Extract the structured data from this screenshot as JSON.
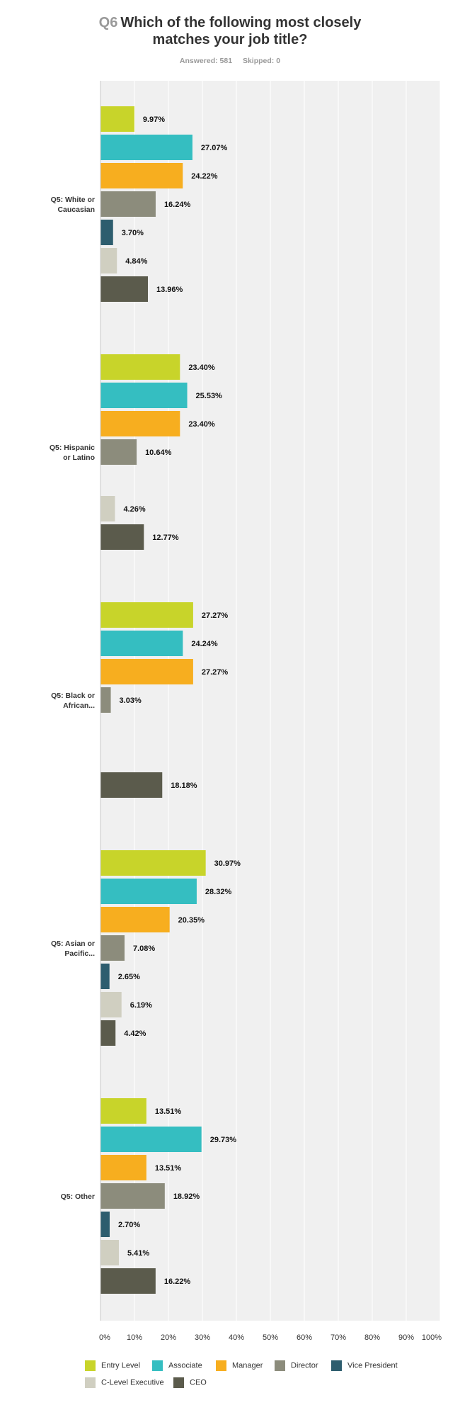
{
  "header": {
    "question_number": "Q6",
    "title_line1": "Which of the following most closely",
    "title_line2": "matches your job title?",
    "answered": "Answered: 581",
    "skipped": "Skipped: 0"
  },
  "chart_data": {
    "type": "bar",
    "orientation": "horizontal",
    "categories": [
      [
        "Q5: White or",
        "Caucasian"
      ],
      [
        "Q5: Hispanic",
        "or Latino"
      ],
      [
        "Q5: Black or",
        "African..."
      ],
      [
        "Q5: Asian or",
        "Pacific..."
      ],
      [
        "Q5: Other"
      ]
    ],
    "series": [
      {
        "name": "Entry Level",
        "color": "#c8d42a",
        "values": [
          9.97,
          23.4,
          27.27,
          30.97,
          13.51
        ]
      },
      {
        "name": "Associate",
        "color": "#35bec1",
        "values": [
          27.07,
          25.53,
          24.24,
          28.32,
          29.73
        ]
      },
      {
        "name": "Manager",
        "color": "#f7ae1f",
        "values": [
          24.22,
          23.4,
          27.27,
          20.35,
          13.51
        ]
      },
      {
        "name": "Director",
        "color": "#8c8c7c",
        "values": [
          16.24,
          10.64,
          3.03,
          7.08,
          18.92
        ]
      },
      {
        "name": "Vice President",
        "color": "#2d5d6e",
        "values": [
          3.7,
          null,
          null,
          2.65,
          2.7
        ]
      },
      {
        "name": "C-Level Executive",
        "color": "#d0cfc1",
        "values": [
          4.84,
          4.26,
          null,
          6.19,
          5.41
        ]
      },
      {
        "name": "CEO",
        "color": "#5b5b4c",
        "values": [
          13.96,
          12.77,
          18.18,
          4.42,
          16.22
        ]
      }
    ],
    "value_labels": [
      [
        "9.97%",
        "23.40%",
        "27.27%",
        "30.97%",
        "13.51%"
      ],
      [
        "27.07%",
        "25.53%",
        "24.24%",
        "28.32%",
        "29.73%"
      ],
      [
        "24.22%",
        "23.40%",
        "27.27%",
        "20.35%",
        "13.51%"
      ],
      [
        "16.24%",
        "10.64%",
        "3.03%",
        "7.08%",
        "18.92%"
      ],
      [
        "3.70%",
        null,
        null,
        "2.65%",
        "2.70%"
      ],
      [
        "4.84%",
        "4.26%",
        null,
        "6.19%",
        "5.41%"
      ],
      [
        "13.96%",
        "12.77%",
        "18.18%",
        "4.42%",
        "16.22%"
      ]
    ],
    "x_ticks": [
      "0%",
      "10%",
      "20%",
      "30%",
      "40%",
      "50%",
      "60%",
      "70%",
      "80%",
      "90%",
      "100%"
    ],
    "xlim": [
      0,
      100
    ],
    "grid": true,
    "legend_position": "bottom"
  }
}
